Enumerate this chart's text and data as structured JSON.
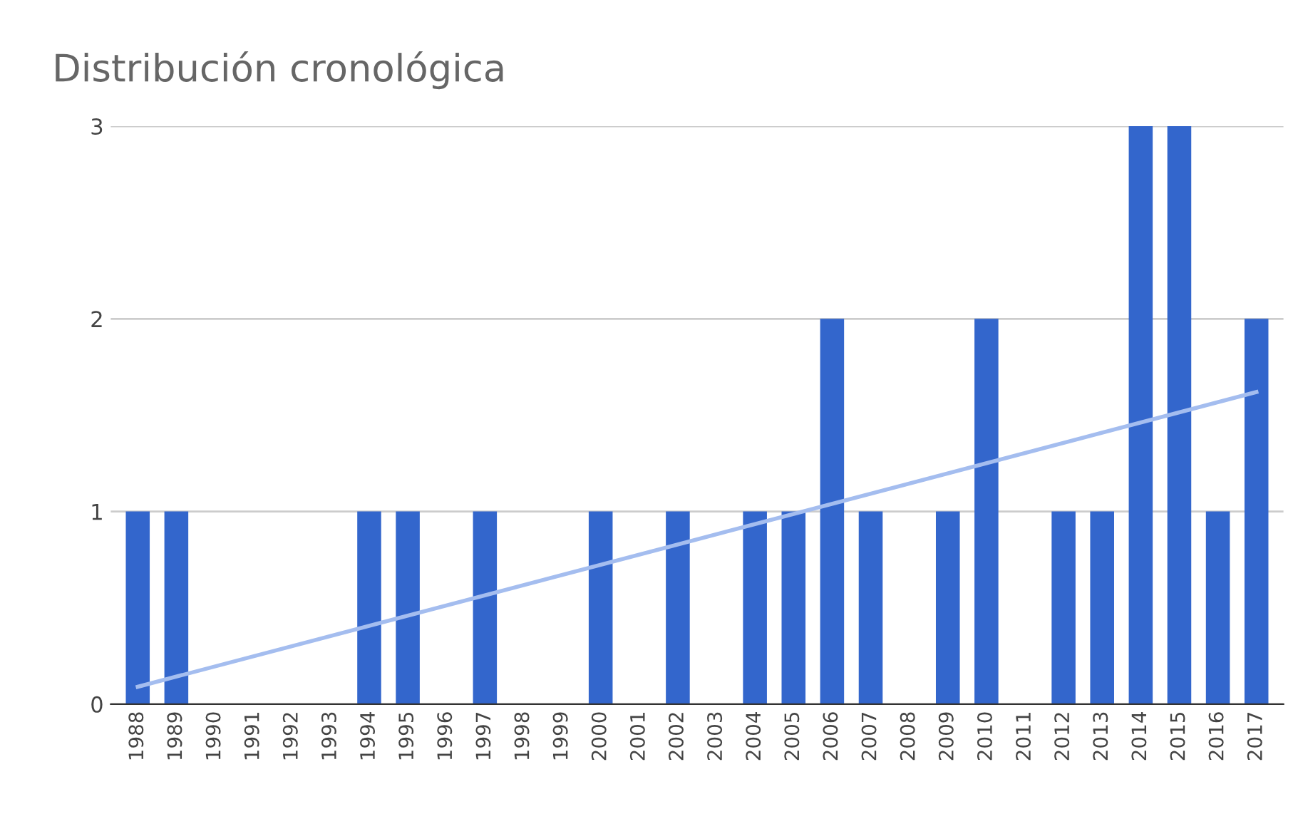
{
  "chart_data": {
    "type": "bar",
    "title": "Distribución cronológica",
    "categories": [
      "1988",
      "1989",
      "1990",
      "1991",
      "1992",
      "1993",
      "1994",
      "1995",
      "1996",
      "1997",
      "1998",
      "1999",
      "2000",
      "2001",
      "2002",
      "2003",
      "2004",
      "2005",
      "2006",
      "2007",
      "2008",
      "2009",
      "2010",
      "2011",
      "2012",
      "2013",
      "2014",
      "2015",
      "2016",
      "2017"
    ],
    "series": [
      {
        "color": "#3366cc",
        "values": [
          1,
          1,
          0,
          0,
          0,
          0,
          1,
          1,
          0,
          1,
          0,
          0,
          1,
          0,
          1,
          0,
          1,
          1,
          2,
          1,
          0,
          1,
          2,
          0,
          1,
          1,
          3,
          3,
          1,
          2
        ]
      },
      {
        "type": "line",
        "color": "#a4bdef",
        "values": [
          0.09,
          null,
          null,
          null,
          null,
          null,
          null,
          null,
          null,
          null,
          null,
          null,
          null,
          null,
          null,
          null,
          null,
          null,
          null,
          null,
          null,
          null,
          null,
          null,
          null,
          null,
          null,
          null,
          null,
          1.62
        ]
      }
    ],
    "ylim": [
      0,
      3
    ],
    "yticks": [
      0,
      1,
      2,
      3
    ],
    "grid": "y"
  }
}
